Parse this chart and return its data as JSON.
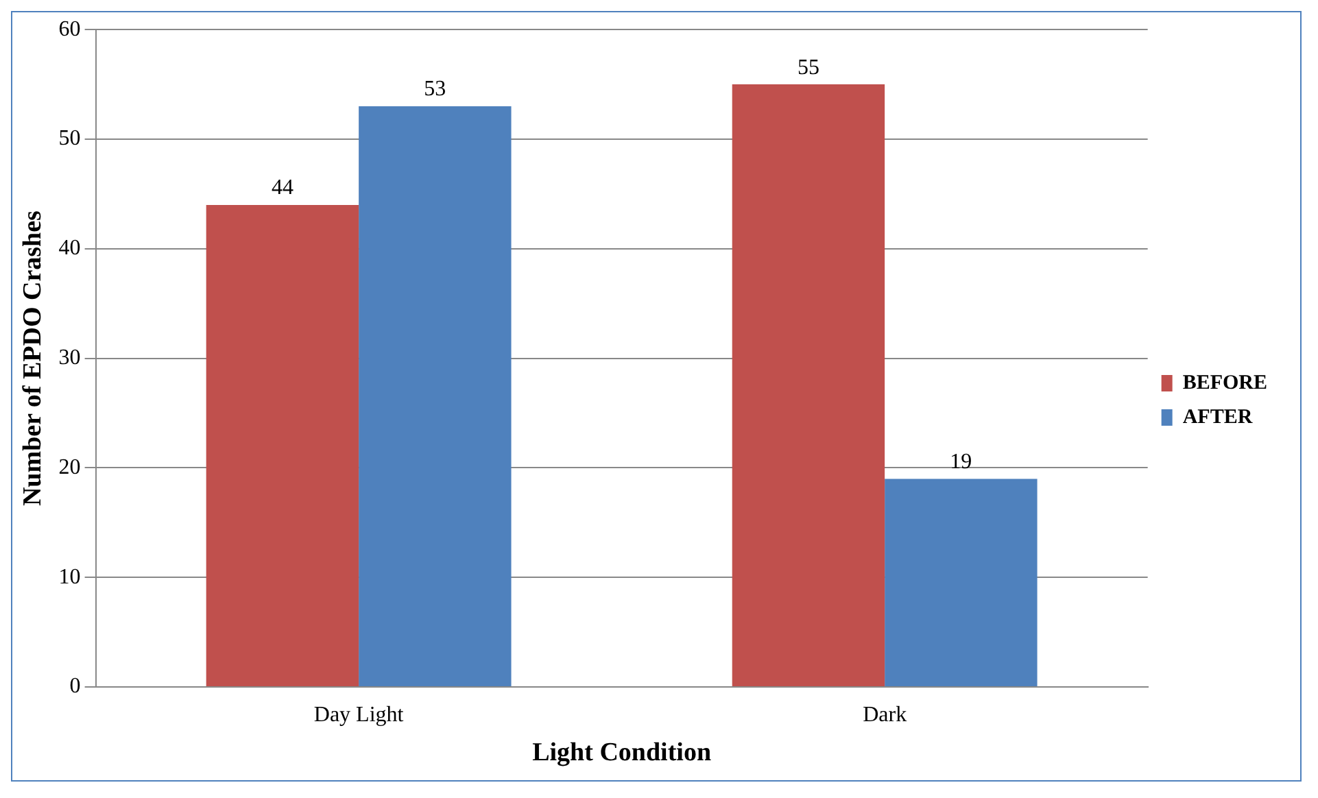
{
  "chart_data": {
    "type": "bar",
    "xlabel": "Light Condition",
    "ylabel": "Number of EPDO Crashes",
    "categories": [
      "Day Light",
      "Dark"
    ],
    "series": [
      {
        "name": "BEFORE",
        "color": "#c0504d",
        "values": [
          44,
          55
        ]
      },
      {
        "name": "AFTER",
        "color": "#4f81bd",
        "values": [
          53,
          19
        ]
      }
    ],
    "ylim": [
      0,
      60
    ],
    "yticks": [
      0,
      10,
      20,
      30,
      40,
      50,
      60
    ],
    "grid": "y",
    "legend": "right",
    "data_labels": true
  }
}
